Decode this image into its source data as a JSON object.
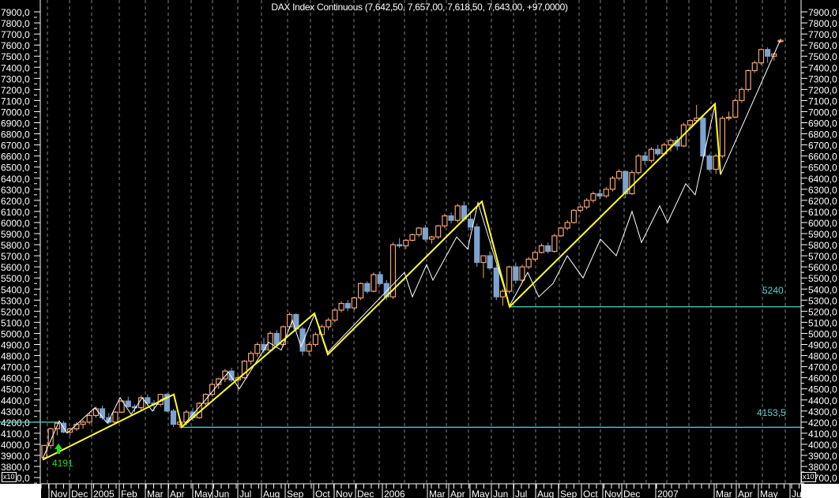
{
  "title": "DAX Index Continuous (7,642,50, 7,657,00, 7,618,50, 7,643,00, +97,0000)",
  "colors": {
    "background": "#000000",
    "up_candle": "#f5a36a",
    "down_candle": "#7ea3cf",
    "zigzag_major": "#ffff22",
    "zigzag_minor": "#ffffff",
    "level_line": "#4fd6d6",
    "pivot_marker": "#22dd22",
    "grid": "#808080"
  },
  "y_axis": {
    "ticks": [
      "7900,0",
      "7800,0",
      "7700,0",
      "7600,0",
      "7500,0",
      "7400,0",
      "7300,0",
      "7200,0",
      "7100,0",
      "7000,0",
      "6900,0",
      "6800,0",
      "6700,0",
      "6600,0",
      "6500,0",
      "6400,0",
      "6300,0",
      "6200,0",
      "6100,0",
      "6000,0",
      "5900,0",
      "5800,0",
      "5700,0",
      "5600,0",
      "5500,0",
      "5400,0",
      "5300,0",
      "5200,0",
      "5100,0",
      "5000,0",
      "4900,0",
      "4800,0",
      "4700,0",
      "4600,0",
      "4500,0",
      "4400,0",
      "4300,0",
      "4200,0",
      "4100,0",
      "4000,0",
      "3900,0",
      "3800,0",
      "3700,0"
    ],
    "scale_badge": "x10"
  },
  "x_axis": {
    "ticks": [
      "Nov",
      "Dec",
      "2005",
      "Feb",
      "Mar",
      "Apr",
      "May",
      "Jun",
      "Jul",
      "Aug",
      "Sep",
      "Oct",
      "Nov",
      "Dec",
      "2006",
      "Mar",
      "Apr",
      "May",
      "Jun",
      "Jul",
      "Aug",
      "Sep",
      "Oct",
      "Nov",
      "Dec",
      "2007",
      "Mar",
      "Apr",
      "May",
      "Jul"
    ]
  },
  "levels": [
    {
      "label": "5240",
      "value": 5240
    },
    {
      "label": "4153,5",
      "value": 4153.5
    },
    {
      "label": "",
      "value": 4200
    }
  ],
  "pivot": {
    "label": "4191",
    "marker": "up-arrow"
  },
  "chart_data": {
    "type": "candlestick",
    "title": "DAX Index Continuous (7,642,50, 7,657,00, 7,618,50, 7,643,00, +97,0000)",
    "xlabel": "",
    "ylabel": "",
    "ylim": [
      3700,
      7950
    ],
    "grid": true,
    "period": "weekly, Oct 2004 - May 2007",
    "last_bar": {
      "open": 7642.5,
      "high": 7657.0,
      "low": 7618.5,
      "close": 7643.0,
      "change": 97.0
    },
    "candles": [
      [
        3880,
        3990,
        3860,
        3990
      ],
      [
        3990,
        4150,
        3960,
        4140
      ],
      [
        4140,
        4190,
        4080,
        4190
      ],
      [
        4190,
        4210,
        4100,
        4110
      ],
      [
        4110,
        4150,
        4080,
        4140
      ],
      [
        4140,
        4200,
        4120,
        4180
      ],
      [
        4180,
        4220,
        4140,
        4200
      ],
      [
        4200,
        4280,
        4180,
        4260
      ],
      [
        4260,
        4340,
        4240,
        4320
      ],
      [
        4320,
        4350,
        4220,
        4240
      ],
      [
        4240,
        4280,
        4180,
        4200
      ],
      [
        4200,
        4300,
        4180,
        4290
      ],
      [
        4290,
        4400,
        4280,
        4390
      ],
      [
        4390,
        4430,
        4330,
        4340
      ],
      [
        4340,
        4360,
        4290,
        4330
      ],
      [
        4330,
        4440,
        4310,
        4420
      ],
      [
        4420,
        4450,
        4350,
        4370
      ],
      [
        4370,
        4400,
        4300,
        4360
      ],
      [
        4360,
        4450,
        4340,
        4450
      ],
      [
        4450,
        4460,
        4290,
        4300
      ],
      [
        4300,
        4320,
        4155,
        4180
      ],
      [
        4180,
        4230,
        4150,
        4200
      ],
      [
        4200,
        4310,
        4170,
        4290
      ],
      [
        4290,
        4330,
        4210,
        4240
      ],
      [
        4240,
        4380,
        4230,
        4370
      ],
      [
        4370,
        4460,
        4350,
        4450
      ],
      [
        4450,
        4560,
        4430,
        4540
      ],
      [
        4540,
        4600,
        4500,
        4590
      ],
      [
        4590,
        4680,
        4560,
        4660
      ],
      [
        4660,
        4690,
        4560,
        4580
      ],
      [
        4580,
        4620,
        4480,
        4600
      ],
      [
        4600,
        4760,
        4590,
        4750
      ],
      [
        4750,
        4840,
        4720,
        4820
      ],
      [
        4820,
        4920,
        4790,
        4900
      ],
      [
        4900,
        4960,
        4820,
        4850
      ],
      [
        4850,
        5020,
        4840,
        5000
      ],
      [
        5000,
        5030,
        4870,
        4900
      ],
      [
        4900,
        5070,
        4880,
        5060
      ],
      [
        5060,
        5190,
        5040,
        5170
      ],
      [
        5170,
        5180,
        5020,
        5040
      ],
      [
        5040,
        5060,
        4800,
        4840
      ],
      [
        4840,
        4920,
        4800,
        4900
      ],
      [
        4900,
        5010,
        4880,
        4990
      ],
      [
        4990,
        5080,
        4960,
        5060
      ],
      [
        5060,
        5140,
        5030,
        5120
      ],
      [
        5120,
        5230,
        5100,
        5210
      ],
      [
        5210,
        5290,
        5190,
        5270
      ],
      [
        5270,
        5300,
        5200,
        5230
      ],
      [
        5230,
        5330,
        5210,
        5320
      ],
      [
        5320,
        5460,
        5300,
        5450
      ],
      [
        5450,
        5470,
        5360,
        5380
      ],
      [
        5380,
        5550,
        5370,
        5530
      ],
      [
        5530,
        5560,
        5440,
        5450
      ],
      [
        5450,
        5480,
        5300,
        5330
      ],
      [
        5330,
        5820,
        5310,
        5800
      ],
      [
        5800,
        5860,
        5770,
        5790
      ],
      [
        5790,
        5850,
        5760,
        5840
      ],
      [
        5840,
        5900,
        5830,
        5890
      ],
      [
        5890,
        5960,
        5870,
        5950
      ],
      [
        5950,
        5980,
        5830,
        5850
      ],
      [
        5850,
        5880,
        5810,
        5870
      ],
      [
        5870,
        5980,
        5850,
        5970
      ],
      [
        5970,
        6080,
        5950,
        6060
      ],
      [
        6060,
        6090,
        5990,
        6020
      ],
      [
        6020,
        6170,
        6000,
        6150
      ],
      [
        6150,
        6190,
        6010,
        6030
      ],
      [
        6030,
        6100,
        5930,
        5960
      ],
      [
        5960,
        5990,
        5600,
        5640
      ],
      [
        5640,
        5680,
        5500,
        5700
      ],
      [
        5700,
        5740,
        5570,
        5590
      ],
      [
        5590,
        5620,
        5300,
        5330
      ],
      [
        5330,
        5400,
        5250,
        5380
      ],
      [
        5380,
        5610,
        5360,
        5600
      ],
      [
        5600,
        5640,
        5450,
        5480
      ],
      [
        5480,
        5620,
        5460,
        5600
      ],
      [
        5600,
        5690,
        5580,
        5670
      ],
      [
        5670,
        5750,
        5650,
        5730
      ],
      [
        5730,
        5810,
        5720,
        5790
      ],
      [
        5790,
        5820,
        5720,
        5740
      ],
      [
        5740,
        5900,
        5730,
        5880
      ],
      [
        5880,
        5960,
        5870,
        5950
      ],
      [
        5950,
        6020,
        5930,
        6000
      ],
      [
        6000,
        6120,
        5990,
        6110
      ],
      [
        6110,
        6160,
        6090,
        6140
      ],
      [
        6140,
        6220,
        6120,
        6200
      ],
      [
        6200,
        6280,
        6180,
        6260
      ],
      [
        6260,
        6300,
        6210,
        6240
      ],
      [
        6240,
        6320,
        6220,
        6300
      ],
      [
        6300,
        6420,
        6280,
        6400
      ],
      [
        6400,
        6480,
        6380,
        6460
      ],
      [
        6460,
        6470,
        6220,
        6260
      ],
      [
        6260,
        6470,
        6250,
        6450
      ],
      [
        6450,
        6620,
        6430,
        6600
      ],
      [
        6600,
        6640,
        6520,
        6560
      ],
      [
        6560,
        6680,
        6540,
        6660
      ],
      [
        6660,
        6700,
        6600,
        6620
      ],
      [
        6620,
        6720,
        6600,
        6700
      ],
      [
        6700,
        6760,
        6640,
        6740
      ],
      [
        6740,
        6780,
        6650,
        6690
      ],
      [
        6690,
        6900,
        6680,
        6880
      ],
      [
        6880,
        6930,
        6850,
        6920
      ],
      [
        6920,
        7060,
        6900,
        6940
      ],
      [
        6940,
        6960,
        6560,
        6600
      ],
      [
        6600,
        6620,
        6460,
        6480
      ],
      [
        6480,
        6620,
        6440,
        6600
      ],
      [
        6600,
        6960,
        6580,
        6940
      ],
      [
        6940,
        7000,
        6920,
        6950
      ],
      [
        6950,
        7120,
        6940,
        7100
      ],
      [
        7100,
        7220,
        7080,
        7200
      ],
      [
        7200,
        7380,
        7180,
        7370
      ],
      [
        7370,
        7460,
        7350,
        7440
      ],
      [
        7440,
        7570,
        7420,
        7560
      ],
      [
        7560,
        7580,
        7440,
        7500
      ],
      [
        7500,
        7520,
        7460,
        7520
      ],
      [
        7642.5,
        7657,
        7618.5,
        7643
      ]
    ]
  }
}
